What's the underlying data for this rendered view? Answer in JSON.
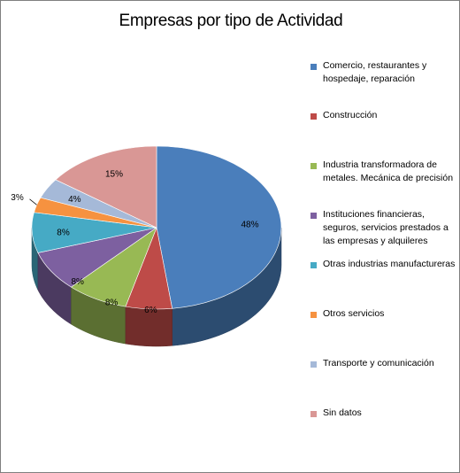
{
  "chart_data": {
    "type": "pie",
    "title": "Empresas por tipo de Actividad",
    "legend_position": "right",
    "slices": [
      {
        "name": "Comercio, restaurantes y hospedaje, reparación",
        "value": 48,
        "label": "48%",
        "color": "#4a7ebb"
      },
      {
        "name": "Construcción",
        "value": 6,
        "label": "6%",
        "color": "#be4b48"
      },
      {
        "name": "Industria transformadora de metales. Mecánica de precisión",
        "value": 8,
        "label": "8%",
        "color": "#98b954"
      },
      {
        "name": "Instituciones financieras, seguros, servicios prestados a las empresas y alquileres",
        "value": 8,
        "label": "8%",
        "color": "#7d60a0"
      },
      {
        "name": "Otras industrias manufactureras",
        "value": 8,
        "label": "8%",
        "color": "#46aac5"
      },
      {
        "name": "Otros servicios",
        "value": 3,
        "label": "3%",
        "color": "#f69240"
      },
      {
        "name": "Transporte y comunicación",
        "value": 4,
        "label": "4%",
        "color": "#a5b9d8"
      },
      {
        "name": "Sin datos",
        "value": 15,
        "label": "15%",
        "color": "#d99795"
      }
    ]
  }
}
